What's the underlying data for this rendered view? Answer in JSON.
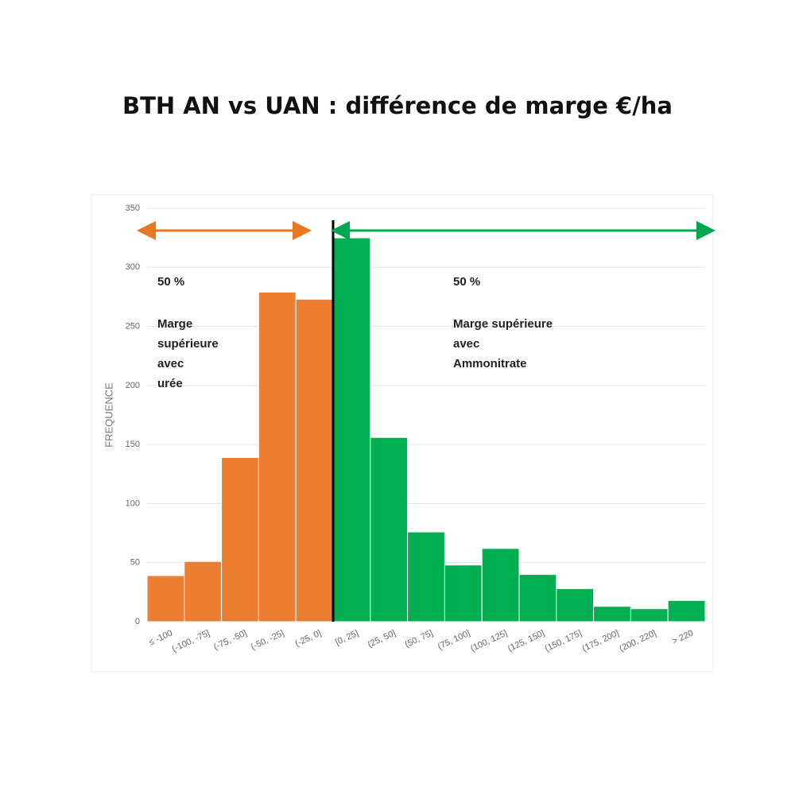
{
  "chart_data": {
    "type": "bar",
    "title": "BTH AN vs UAN : différence de marge €/ha",
    "y_label": "FREQUENCE",
    "categories": [
      "≤ -100",
      "(-100, -75]",
      "(-75, -50]",
      "(-50, -25]",
      "(-25, 0]",
      "[0, 25]",
      "(25, 50]",
      "(50, 75]",
      "(75, 100]",
      "(100, 125]",
      "(125, 150]",
      "(150, 175]",
      "(175, 200]",
      "(200, 220]",
      "> 220"
    ],
    "values": [
      39,
      51,
      139,
      279,
      273,
      325,
      156,
      76,
      48,
      62,
      40,
      28,
      13,
      11,
      18
    ],
    "colors": [
      "#ed7d31",
      "#ed7d31",
      "#ed7d31",
      "#ed7d31",
      "#ed7d31",
      "#00b050",
      "#00b050",
      "#00b050",
      "#00b050",
      "#00b050",
      "#00b050",
      "#00b050",
      "#00b050",
      "#00b050",
      "#00b050"
    ],
    "ylim": [
      0,
      350
    ],
    "yticks": [
      0,
      50,
      100,
      150,
      200,
      250,
      300,
      350
    ],
    "grid": true,
    "annotations": [
      {
        "lines": [
          "50 %",
          "Marge",
          "supérieure",
          "avec",
          "urée"
        ]
      },
      {
        "lines": [
          "50 %",
          "Marge supérieure",
          "avec",
          "Ammonitrate"
        ]
      }
    ]
  }
}
